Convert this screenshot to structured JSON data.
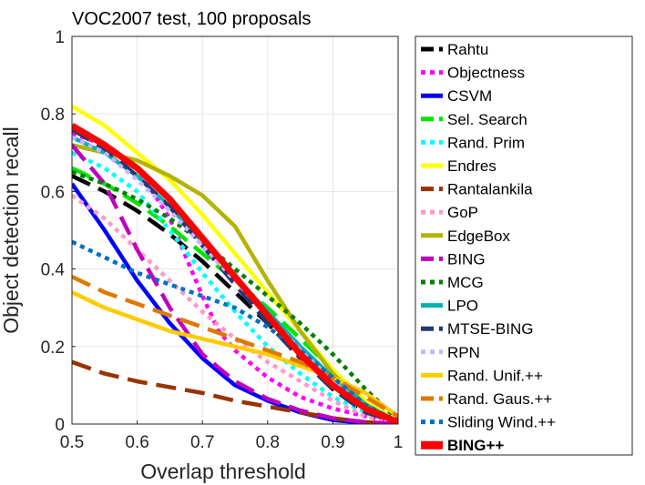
{
  "chart_data": {
    "type": "line",
    "title": "VOC2007 test, 100 proposals",
    "xlabel": "Overlap threshold",
    "ylabel": "Object detection recall",
    "xlim": [
      0.5,
      1
    ],
    "ylim": [
      0,
      1
    ],
    "xticks": [
      "0.5",
      "0.6",
      "0.7",
      "0.8",
      "0.9",
      "1"
    ],
    "yticks": [
      "0",
      "0.2",
      "0.4",
      "0.6",
      "0.8",
      "1"
    ],
    "grid": true,
    "legend_position": "outside-right",
    "series": [
      {
        "name": "Rahtu",
        "color": "#000000",
        "style": "dashed",
        "x": [
          0.5,
          0.55,
          0.6,
          0.65,
          0.7,
          0.75,
          0.8,
          0.85,
          0.9,
          0.95,
          1.0
        ],
        "y": [
          0.64,
          0.6,
          0.55,
          0.49,
          0.42,
          0.34,
          0.26,
          0.17,
          0.09,
          0.03,
          0.005
        ]
      },
      {
        "name": "Objectness",
        "color": "#ff00ff",
        "style": "dotted",
        "x": [
          0.5,
          0.55,
          0.6,
          0.65,
          0.7,
          0.725,
          0.75,
          0.8,
          0.85,
          0.9,
          0.95,
          1.0
        ],
        "y": [
          0.75,
          0.72,
          0.66,
          0.53,
          0.33,
          0.24,
          0.19,
          0.12,
          0.07,
          0.04,
          0.02,
          0.005
        ]
      },
      {
        "name": "CSVM",
        "color": "#0000ff",
        "style": "solid",
        "x": [
          0.5,
          0.55,
          0.6,
          0.65,
          0.7,
          0.75,
          0.8,
          0.85,
          0.9,
          0.95,
          1.0
        ],
        "y": [
          0.62,
          0.5,
          0.37,
          0.26,
          0.17,
          0.1,
          0.06,
          0.03,
          0.01,
          0.003,
          0.0
        ]
      },
      {
        "name": "Sel. Search",
        "color": "#00e600",
        "style": "dashed",
        "x": [
          0.5,
          0.55,
          0.6,
          0.65,
          0.7,
          0.75,
          0.8,
          0.85,
          0.9,
          0.95,
          1.0
        ],
        "y": [
          0.66,
          0.62,
          0.57,
          0.51,
          0.44,
          0.37,
          0.3,
          0.22,
          0.14,
          0.06,
          0.005
        ]
      },
      {
        "name": "Rand. Prim",
        "color": "#00ffff",
        "style": "dotted",
        "x": [
          0.5,
          0.55,
          0.6,
          0.65,
          0.7,
          0.75,
          0.8,
          0.85,
          0.9,
          0.95,
          1.0
        ],
        "y": [
          0.7,
          0.66,
          0.6,
          0.5,
          0.39,
          0.29,
          0.2,
          0.13,
          0.07,
          0.03,
          0.005
        ]
      },
      {
        "name": "Endres",
        "color": "#ffff00",
        "style": "solid",
        "x": [
          0.5,
          0.55,
          0.6,
          0.65,
          0.7,
          0.75,
          0.8,
          0.85,
          0.9,
          0.95,
          1.0
        ],
        "y": [
          0.82,
          0.77,
          0.7,
          0.63,
          0.54,
          0.44,
          0.34,
          0.24,
          0.14,
          0.06,
          0.005
        ]
      },
      {
        "name": "Rantalankila",
        "color": "#993300",
        "style": "dashed",
        "x": [
          0.5,
          0.55,
          0.6,
          0.65,
          0.7,
          0.75,
          0.8,
          0.85,
          0.9,
          0.95,
          1.0
        ],
        "y": [
          0.16,
          0.13,
          0.11,
          0.095,
          0.08,
          0.06,
          0.045,
          0.03,
          0.015,
          0.005,
          0.0
        ]
      },
      {
        "name": "GoP",
        "color": "#ff99cc",
        "style": "dotted",
        "x": [
          0.5,
          0.55,
          0.6,
          0.65,
          0.7,
          0.75,
          0.8,
          0.85,
          0.9,
          0.95,
          1.0
        ],
        "y": [
          0.59,
          0.53,
          0.45,
          0.37,
          0.29,
          0.22,
          0.16,
          0.11,
          0.06,
          0.02,
          0.005
        ]
      },
      {
        "name": "EdgeBox",
        "color": "#b3b300",
        "style": "solid",
        "x": [
          0.5,
          0.55,
          0.6,
          0.65,
          0.7,
          0.75,
          0.8,
          0.85,
          0.9,
          0.95,
          1.0
        ],
        "y": [
          0.72,
          0.7,
          0.68,
          0.64,
          0.59,
          0.51,
          0.37,
          0.24,
          0.13,
          0.05,
          0.005
        ]
      },
      {
        "name": "BING",
        "color": "#bf00bf",
        "style": "dashed",
        "x": [
          0.5,
          0.55,
          0.6,
          0.65,
          0.7,
          0.75,
          0.8,
          0.85,
          0.9,
          0.95,
          1.0
        ],
        "y": [
          0.72,
          0.62,
          0.45,
          0.3,
          0.18,
          0.11,
          0.065,
          0.035,
          0.015,
          0.005,
          0.0
        ]
      },
      {
        "name": "MCG",
        "color": "#007f00",
        "style": "dotted",
        "x": [
          0.5,
          0.55,
          0.6,
          0.65,
          0.7,
          0.75,
          0.8,
          0.85,
          0.9,
          0.95,
          1.0
        ],
        "y": [
          0.65,
          0.62,
          0.58,
          0.53,
          0.47,
          0.4,
          0.33,
          0.26,
          0.18,
          0.09,
          0.01
        ]
      },
      {
        "name": "LPO",
        "color": "#00b3b3",
        "style": "solid",
        "x": [
          0.5,
          0.55,
          0.6,
          0.65,
          0.7,
          0.75,
          0.8,
          0.85,
          0.9,
          0.95,
          1.0
        ],
        "y": [
          0.74,
          0.7,
          0.64,
          0.56,
          0.47,
          0.38,
          0.29,
          0.2,
          0.12,
          0.05,
          0.005
        ]
      },
      {
        "name": "MTSE-BING",
        "color": "#1f3a73",
        "style": "dashed",
        "x": [
          0.5,
          0.55,
          0.6,
          0.65,
          0.7,
          0.75,
          0.8,
          0.85,
          0.9,
          0.95,
          1.0
        ],
        "y": [
          0.76,
          0.71,
          0.64,
          0.56,
          0.46,
          0.36,
          0.26,
          0.17,
          0.09,
          0.03,
          0.005
        ]
      },
      {
        "name": "RPN",
        "color": "#ccb3ff",
        "style": "dotted",
        "x": [
          0.5,
          0.55,
          0.6,
          0.65,
          0.7,
          0.75,
          0.8,
          0.85,
          0.9,
          0.95,
          1.0
        ],
        "y": [
          0.74,
          0.7,
          0.63,
          0.55,
          0.46,
          0.37,
          0.28,
          0.19,
          0.11,
          0.04,
          0.005
        ]
      },
      {
        "name": "Rand. Unif.++",
        "color": "#ffcc00",
        "style": "solid",
        "x": [
          0.5,
          0.55,
          0.6,
          0.65,
          0.7,
          0.75,
          0.8,
          0.85,
          0.9,
          0.95,
          1.0
        ],
        "y": [
          0.34,
          0.3,
          0.27,
          0.24,
          0.22,
          0.2,
          0.18,
          0.15,
          0.12,
          0.08,
          0.02
        ]
      },
      {
        "name": "Rand. Gaus.++",
        "color": "#e07800",
        "style": "dashed",
        "x": [
          0.5,
          0.55,
          0.6,
          0.65,
          0.7,
          0.75,
          0.8,
          0.85,
          0.9,
          0.95,
          1.0
        ],
        "y": [
          0.38,
          0.34,
          0.31,
          0.28,
          0.25,
          0.22,
          0.19,
          0.16,
          0.12,
          0.07,
          0.02
        ]
      },
      {
        "name": "Sliding Wind.++",
        "color": "#0070c0",
        "style": "dotted",
        "x": [
          0.5,
          0.55,
          0.6,
          0.65,
          0.7,
          0.75,
          0.8,
          0.85,
          0.9,
          0.95,
          1.0
        ],
        "y": [
          0.47,
          0.43,
          0.39,
          0.36,
          0.33,
          0.3,
          0.25,
          0.19,
          0.12,
          0.05,
          0.005
        ]
      },
      {
        "name": "BING++",
        "color": "#ff0000",
        "style": "solid",
        "bold": true,
        "x": [
          0.5,
          0.55,
          0.6,
          0.65,
          0.7,
          0.75,
          0.8,
          0.85,
          0.9,
          0.95,
          1.0
        ],
        "y": [
          0.77,
          0.72,
          0.66,
          0.58,
          0.48,
          0.38,
          0.28,
          0.18,
          0.1,
          0.04,
          0.005
        ]
      }
    ]
  }
}
